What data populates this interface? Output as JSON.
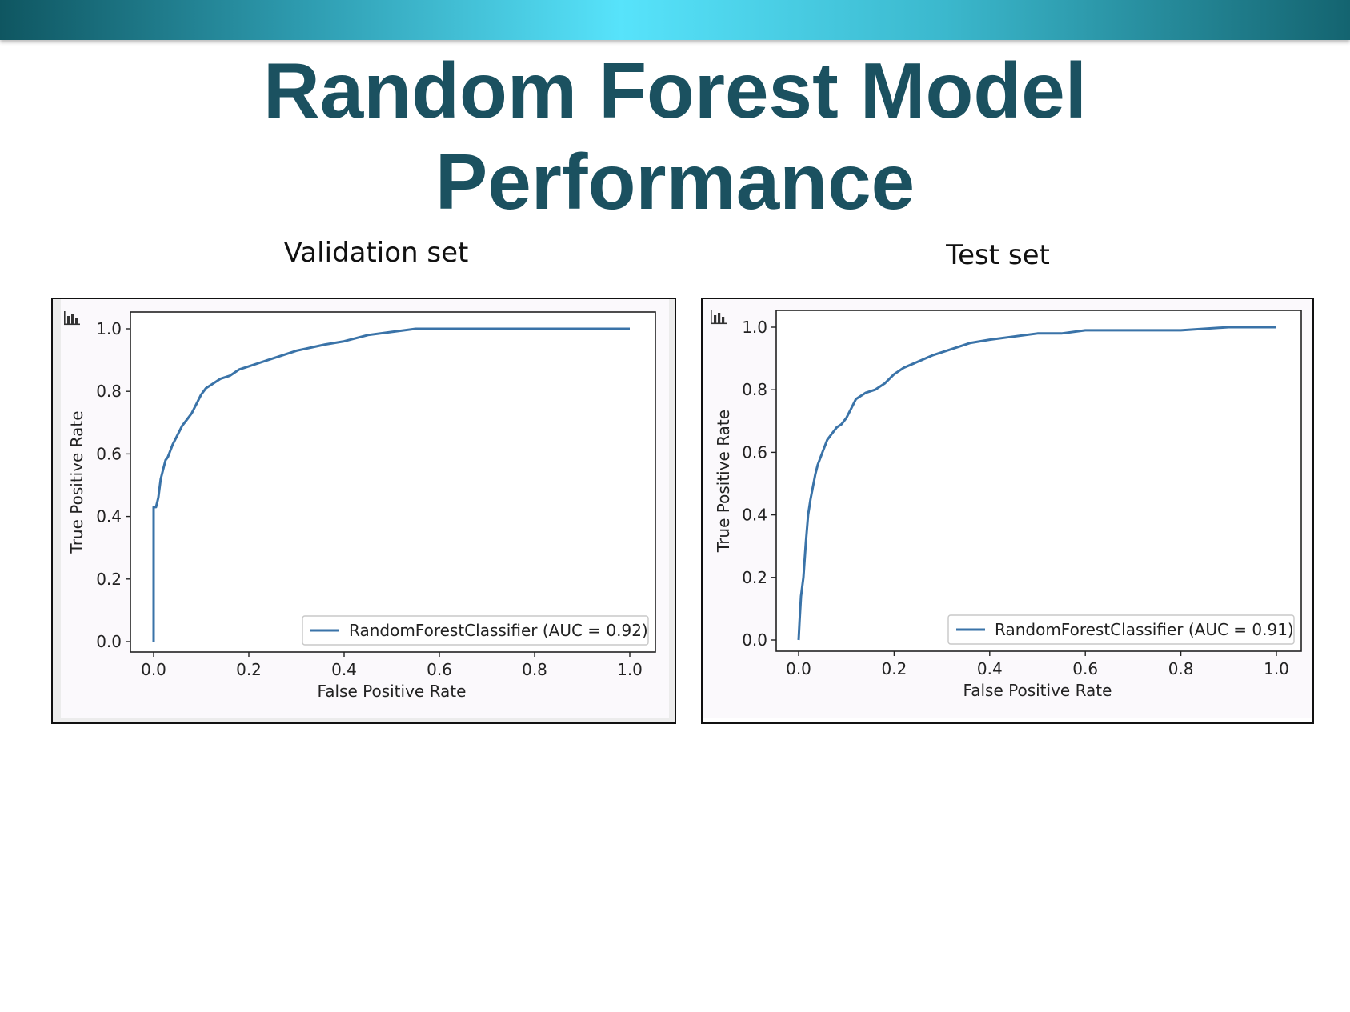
{
  "slide": {
    "title_line1": "Random Forest Model",
    "title_line2": "Performance"
  },
  "colors": {
    "top_bar_center": "#57e3fb",
    "top_bar_edge": "#0f5661",
    "title": "#1b5160",
    "roc_line": "#3a73a8"
  },
  "panels": [
    {
      "caption": "Validation set",
      "icon": "chart-toolbar-icon"
    },
    {
      "caption": "Test set",
      "icon": "chart-toolbar-icon"
    }
  ],
  "chart_data": [
    {
      "type": "line",
      "title": "Validation set",
      "xlabel": "False Positive Rate",
      "ylabel": "True Positive Rate",
      "xlim": [
        0,
        1
      ],
      "ylim": [
        0,
        1
      ],
      "xticks": [
        "0.0",
        "0.2",
        "0.4",
        "0.6",
        "0.8",
        "1.0"
      ],
      "yticks": [
        "0.0",
        "0.2",
        "0.4",
        "0.6",
        "0.8",
        "1.0"
      ],
      "grid": false,
      "legend_position": "lower right",
      "series": [
        {
          "name": "RandomForestClassifier (AUC = 0.92)",
          "x": [
            0,
            0,
            0,
            0.005,
            0.01,
            0.015,
            0.02,
            0.025,
            0.03,
            0.04,
            0.05,
            0.06,
            0.07,
            0.08,
            0.09,
            0.1,
            0.11,
            0.12,
            0.14,
            0.16,
            0.18,
            0.2,
            0.22,
            0.24,
            0.26,
            0.28,
            0.3,
            0.33,
            0.36,
            0.4,
            0.45,
            0.5,
            0.55,
            0.6,
            0.7,
            0.8,
            0.9,
            1.0
          ],
          "y": [
            0,
            0.05,
            0.43,
            0.43,
            0.46,
            0.52,
            0.55,
            0.58,
            0.59,
            0.63,
            0.66,
            0.69,
            0.71,
            0.73,
            0.76,
            0.79,
            0.81,
            0.82,
            0.84,
            0.85,
            0.87,
            0.88,
            0.89,
            0.9,
            0.91,
            0.92,
            0.93,
            0.94,
            0.95,
            0.96,
            0.98,
            0.99,
            1.0,
            1.0,
            1.0,
            1.0,
            1.0,
            1.0
          ]
        }
      ]
    },
    {
      "type": "line",
      "title": "Test set",
      "xlabel": "False Positive Rate",
      "ylabel": "True Positive Rate",
      "xlim": [
        0,
        1
      ],
      "ylim": [
        0,
        1
      ],
      "xticks": [
        "0.0",
        "0.2",
        "0.4",
        "0.6",
        "0.8",
        "1.0"
      ],
      "yticks": [
        "0.0",
        "0.2",
        "0.4",
        "0.6",
        "0.8",
        "1.0"
      ],
      "grid": false,
      "legend_position": "lower right",
      "series": [
        {
          "name": "RandomForestClassifier (AUC = 0.91)",
          "x": [
            0,
            0.002,
            0.005,
            0.01,
            0.015,
            0.02,
            0.025,
            0.03,
            0.035,
            0.04,
            0.05,
            0.06,
            0.07,
            0.08,
            0.09,
            0.1,
            0.11,
            0.12,
            0.14,
            0.16,
            0.18,
            0.2,
            0.22,
            0.25,
            0.28,
            0.32,
            0.36,
            0.4,
            0.45,
            0.5,
            0.55,
            0.6,
            0.7,
            0.8,
            0.9,
            1.0
          ],
          "y": [
            0,
            0.06,
            0.14,
            0.2,
            0.31,
            0.4,
            0.45,
            0.49,
            0.53,
            0.56,
            0.6,
            0.64,
            0.66,
            0.68,
            0.69,
            0.71,
            0.74,
            0.77,
            0.79,
            0.8,
            0.82,
            0.85,
            0.87,
            0.89,
            0.91,
            0.93,
            0.95,
            0.96,
            0.97,
            0.98,
            0.98,
            0.99,
            0.99,
            0.99,
            1.0,
            1.0
          ]
        }
      ]
    }
  ]
}
